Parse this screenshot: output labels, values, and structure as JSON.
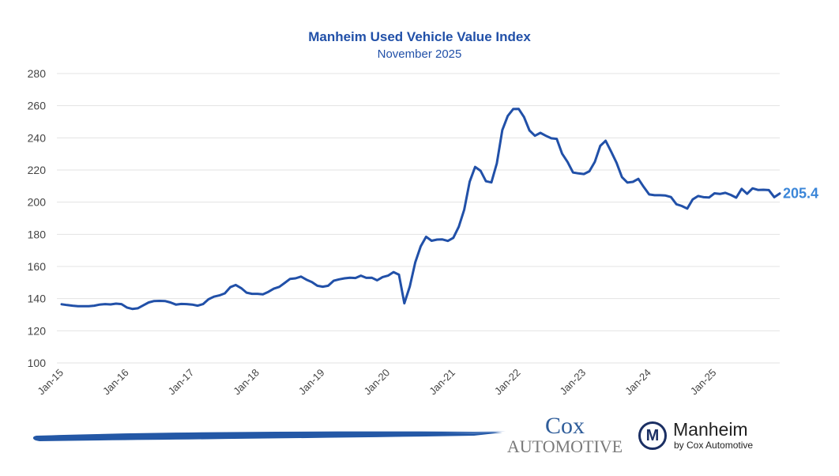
{
  "chart_data": {
    "type": "line",
    "title": "Manheim Used Vehicle Value Index",
    "subtitle": "November 2025",
    "xlabel": "",
    "ylabel": "",
    "ylim": [
      100,
      280
    ],
    "yticks": [
      100,
      120,
      140,
      160,
      180,
      200,
      220,
      240,
      260,
      280
    ],
    "xtick_labels": [
      "Jan-15",
      "Jan-16",
      "Jan-17",
      "Jan-18",
      "Jan-19",
      "Jan-20",
      "Jan-21",
      "Jan-22",
      "Jan-23",
      "Jan-24",
      "Jan-25"
    ],
    "grid": true,
    "legend": "none",
    "start_month": "Jan-15",
    "end_month": "Nov-25",
    "series": [
      {
        "name": "Manheim Used Vehicle Value Index",
        "color": "#2150a8",
        "values": [
          136.5,
          136.0,
          135.6,
          135.3,
          135.3,
          135.3,
          135.6,
          136.3,
          136.6,
          136.4,
          136.9,
          136.6,
          134.5,
          133.6,
          134.0,
          135.8,
          137.6,
          138.5,
          138.6,
          138.5,
          137.6,
          136.3,
          136.7,
          136.6,
          136.3,
          135.6,
          136.6,
          139.6,
          141.2,
          142.0,
          143.3,
          147.1,
          148.5,
          146.5,
          143.7,
          143.0,
          143.0,
          142.7,
          144.2,
          146.2,
          147.3,
          149.7,
          152.3,
          152.6,
          153.7,
          151.8,
          150.3,
          148.0,
          147.4,
          148.0,
          151.1,
          152.0,
          152.6,
          153.0,
          152.8,
          154.3,
          152.9,
          153.0,
          151.4,
          153.4,
          154.3,
          156.5,
          154.9,
          137.1,
          147.5,
          162.5,
          172.5,
          178.5,
          176.0,
          176.7,
          176.8,
          175.9,
          177.8,
          184.7,
          195.3,
          212.7,
          221.9,
          219.5,
          213.0,
          212.3,
          224.2,
          244.8,
          253.6,
          257.9,
          258.0,
          252.9,
          244.6,
          241.3,
          243.1,
          241.3,
          239.7,
          239.4,
          230.2,
          225.0,
          218.5,
          217.9,
          217.5,
          219.2,
          225.0,
          235.0,
          238.2,
          231.5,
          224.5,
          215.5,
          212.2,
          212.6,
          214.5,
          209.5,
          204.8,
          204.3,
          204.3,
          204.1,
          203.2,
          198.7,
          197.6,
          196.0,
          201.7,
          203.8,
          203.1,
          202.9,
          205.5,
          205.1,
          205.8,
          204.5,
          202.8,
          208.3,
          205.2,
          208.6,
          207.6,
          207.7,
          207.5,
          203.1,
          205.4
        ]
      }
    ],
    "end_label": "205.4"
  },
  "branding": {
    "cox_line1": "Cox",
    "cox_line2": "Automotive",
    "manheim_mark": "M",
    "manheim_name": "Manheim",
    "manheim_by": "by Cox Automotive"
  }
}
